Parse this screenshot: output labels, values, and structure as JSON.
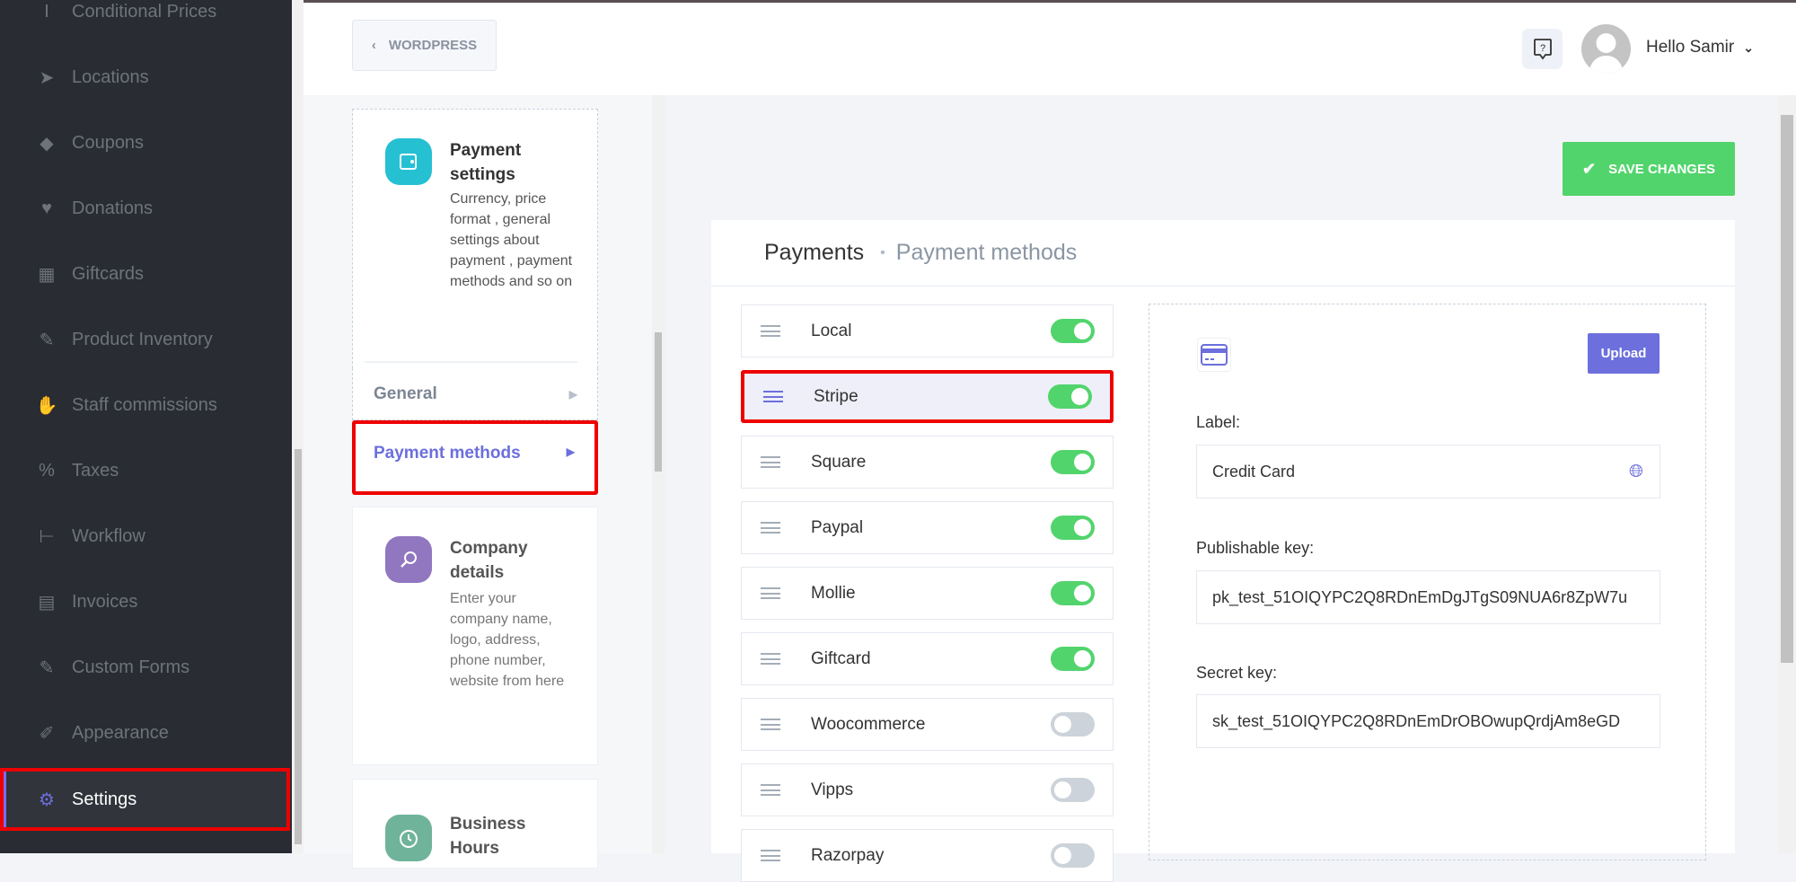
{
  "sidebar": {
    "items": [
      {
        "label": "Conditional Prices",
        "icon": "cursor-text-icon",
        "glyph": "I"
      },
      {
        "label": "Locations",
        "icon": "location-arrow-icon",
        "glyph": "➤"
      },
      {
        "label": "Coupons",
        "icon": "tag-icon",
        "glyph": "◆"
      },
      {
        "label": "Donations",
        "icon": "hand-holding-heart-icon",
        "glyph": "♥"
      },
      {
        "label": "Giftcards",
        "icon": "gift-icon",
        "glyph": "▦"
      },
      {
        "label": "Product Inventory",
        "icon": "magic-wand-icon",
        "glyph": "✎"
      },
      {
        "label": "Staff commissions",
        "icon": "handshake-icon",
        "glyph": "✋"
      },
      {
        "label": "Taxes",
        "icon": "percent-icon",
        "glyph": "%"
      },
      {
        "label": "Workflow",
        "icon": "sitemap-icon",
        "glyph": "⊢"
      },
      {
        "label": "Invoices",
        "icon": "file-icon",
        "glyph": "▤"
      },
      {
        "label": "Custom Forms",
        "icon": "magic-wand-icon",
        "glyph": "✎"
      },
      {
        "label": "Appearance",
        "icon": "brush-icon",
        "glyph": "✐"
      },
      {
        "label": "Settings",
        "icon": "gear-icon",
        "glyph": "⚙",
        "active": true
      }
    ]
  },
  "topbar": {
    "back_label": "WORDPRESS",
    "greeting": "Hello Samir"
  },
  "settings_nav": {
    "payment_card": {
      "title": "Payment settings",
      "description": "Currency, price format , general settings about payment , payment methods and so on",
      "color": "#26c0d3"
    },
    "sub_items": [
      {
        "label": "General"
      },
      {
        "label": "Payment methods",
        "active": true
      }
    ],
    "company_card": {
      "title": "Company details",
      "description": "Enter your company name, logo, address, phone number, website from here",
      "color": "#9077bf"
    },
    "hours_card": {
      "title": "Business Hours",
      "color": "#6fb39a"
    }
  },
  "toolbar": {
    "save_label": "SAVE CHANGES"
  },
  "breadcrumb": {
    "root": "Payments",
    "current": "Payment methods"
  },
  "methods": [
    {
      "name": "Local",
      "enabled": true
    },
    {
      "name": "Stripe",
      "enabled": true,
      "selected": true
    },
    {
      "name": "Square",
      "enabled": true
    },
    {
      "name": "Paypal",
      "enabled": true
    },
    {
      "name": "Mollie",
      "enabled": true
    },
    {
      "name": "Giftcard",
      "enabled": true
    },
    {
      "name": "Woocommerce",
      "enabled": false
    },
    {
      "name": "Vipps",
      "enabled": false
    },
    {
      "name": "Razorpay",
      "enabled": false
    }
  ],
  "detail": {
    "upload_label": "Upload",
    "label_field": {
      "label": "Label:",
      "value": "Credit Card"
    },
    "publishable_key": {
      "label": "Publishable key:",
      "value": "pk_test_51OIQYPC2Q8RDnEmDgJTgS09NUA6r8ZpW7u"
    },
    "secret_key": {
      "label": "Secret key:",
      "value": "sk_test_51OIQYPC2Q8RDnEmDrOBOwupQrdjAm8eGD"
    }
  },
  "colors": {
    "accent": "#6c6fdc",
    "success": "#52d46c",
    "sidebar_bg": "#292c33",
    "highlight": "#ee0000"
  }
}
